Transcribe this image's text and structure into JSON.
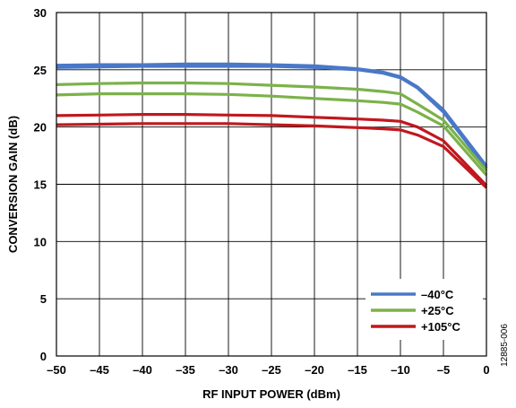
{
  "chart_data": {
    "type": "line",
    "xlabel": "RF INPUT POWER (dBm)",
    "ylabel": "CONVERSION GAIN (dB)",
    "xlim": [
      -50,
      0
    ],
    "ylim": [
      0,
      30
    ],
    "x_ticks": [
      -50,
      -45,
      -40,
      -35,
      -30,
      -25,
      -20,
      -15,
      -10,
      -5,
      0
    ],
    "x_tick_labels": [
      "–50",
      "–45",
      "–40",
      "–35",
      "–30",
      "–25",
      "–20",
      "–15",
      "–10",
      "–5",
      "0"
    ],
    "y_ticks": [
      0,
      5,
      10,
      15,
      20,
      25,
      30
    ],
    "y_tick_labels": [
      "0",
      "5",
      "10",
      "15",
      "20",
      "25",
      "30"
    ],
    "grid": true,
    "legend_position": "bottom-right",
    "figure_id": "12885-006",
    "series": [
      {
        "name": "–40°C",
        "color": "#4a78c8",
        "x": [
          -50,
          -45,
          -40,
          -35,
          -30,
          -25,
          -20,
          -15,
          -12,
          -10,
          -8,
          -5,
          0
        ],
        "y": [
          25.4,
          25.45,
          25.45,
          25.5,
          25.5,
          25.45,
          25.35,
          25.1,
          24.8,
          24.4,
          23.5,
          21.5,
          16.6
        ]
      },
      {
        "name": "–40°C",
        "color": "#4a78c8",
        "x": [
          -50,
          -45,
          -40,
          -35,
          -30,
          -25,
          -20,
          -15,
          -12,
          -10,
          -8,
          -5,
          0
        ],
        "y": [
          25.2,
          25.25,
          25.3,
          25.3,
          25.3,
          25.3,
          25.2,
          25.0,
          24.7,
          24.3,
          23.4,
          21.3,
          16.4
        ]
      },
      {
        "name": "+25°C",
        "color": "#7bb24a",
        "x": [
          -50,
          -45,
          -40,
          -35,
          -30,
          -25,
          -20,
          -15,
          -12,
          -10,
          -8,
          -5,
          0
        ],
        "y": [
          23.7,
          23.8,
          23.85,
          23.85,
          23.8,
          23.65,
          23.5,
          23.3,
          23.1,
          22.9,
          22.0,
          20.6,
          16.2
        ]
      },
      {
        "name": "+25°C",
        "color": "#7bb24a",
        "x": [
          -50,
          -45,
          -40,
          -35,
          -30,
          -25,
          -20,
          -15,
          -12,
          -10,
          -8,
          -5,
          0
        ],
        "y": [
          22.8,
          22.9,
          22.9,
          22.9,
          22.85,
          22.7,
          22.5,
          22.3,
          22.15,
          22.0,
          21.3,
          20.1,
          15.8
        ]
      },
      {
        "name": "+105°C",
        "color": "#c0181e",
        "x": [
          -50,
          -45,
          -40,
          -35,
          -30,
          -25,
          -20,
          -15,
          -12,
          -10,
          -8,
          -5,
          0
        ],
        "y": [
          21.0,
          21.05,
          21.1,
          21.1,
          21.05,
          21.0,
          20.85,
          20.7,
          20.6,
          20.5,
          20.0,
          18.8,
          14.9
        ]
      },
      {
        "name": "+105°C",
        "color": "#c0181e",
        "x": [
          -50,
          -45,
          -40,
          -35,
          -30,
          -25,
          -20,
          -15,
          -12,
          -10,
          -8,
          -5,
          0
        ],
        "y": [
          20.2,
          20.25,
          20.3,
          20.3,
          20.3,
          20.2,
          20.1,
          19.95,
          19.85,
          19.75,
          19.3,
          18.3,
          14.7
        ]
      }
    ],
    "legend": [
      {
        "name": "–40°C",
        "color": "#4a78c8"
      },
      {
        "name": "+25°C",
        "color": "#7bb24a"
      },
      {
        "name": "+105°C",
        "color": "#c0181e"
      }
    ]
  }
}
